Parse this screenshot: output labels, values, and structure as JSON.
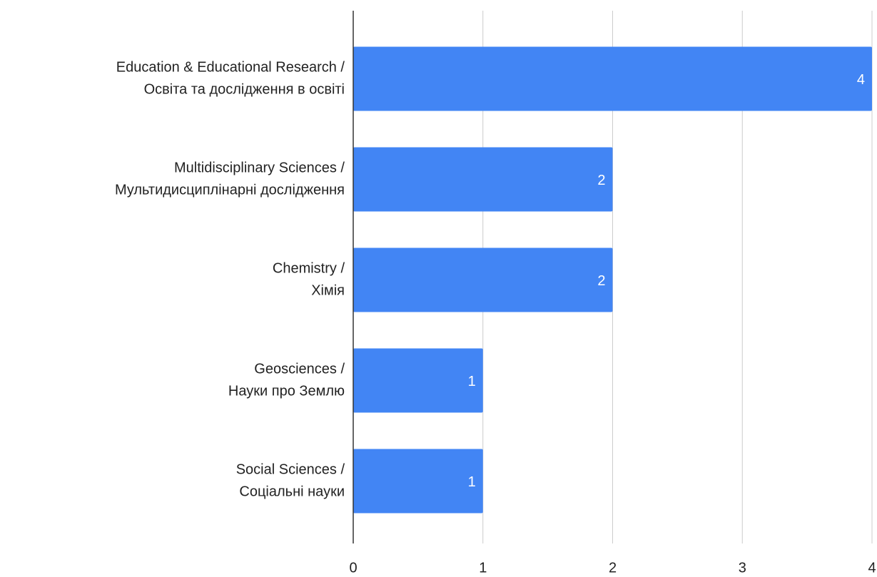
{
  "chart_data": {
    "type": "bar",
    "orientation": "horizontal",
    "categories": [
      [
        "Education & Educational Research /",
        "Освіта та дослідження в освіті"
      ],
      [
        "Multidisciplinary Sciences /",
        "Мультидисциплінарні дослідження"
      ],
      [
        "Chemistry /",
        "Хімія"
      ],
      [
        "Geosciences /",
        "Науки про Землю"
      ],
      [
        "Social Sciences /",
        "Соціальні науки"
      ]
    ],
    "values": [
      4,
      2,
      2,
      1,
      1
    ],
    "color": "#4285f4",
    "xlim": [
      0,
      4
    ],
    "xticks": [
      0,
      1,
      2,
      3,
      4
    ],
    "grid": true
  }
}
